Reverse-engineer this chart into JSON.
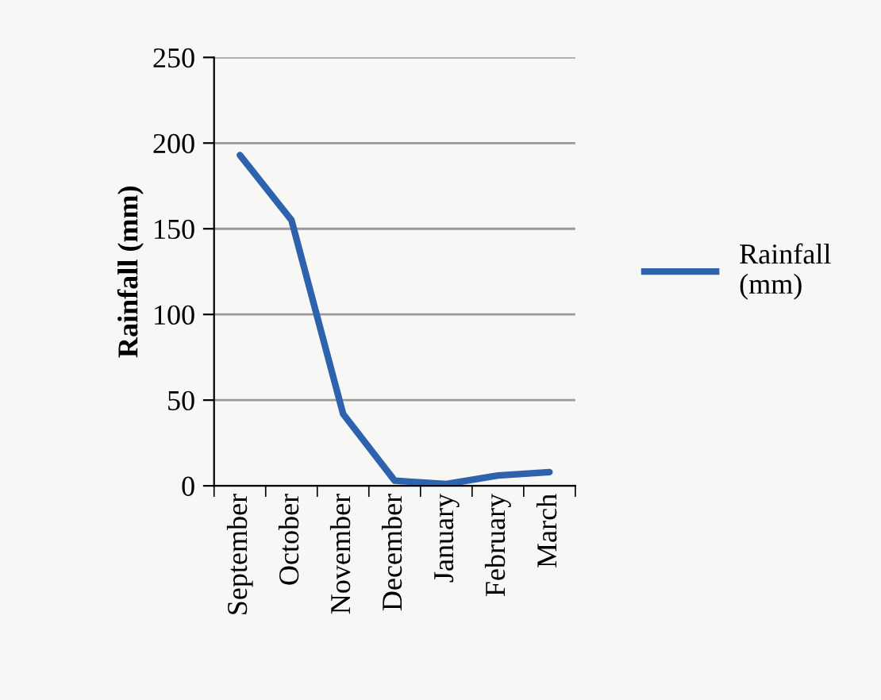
{
  "chart_data": {
    "type": "line",
    "ylabel": "Rainfall (mm)",
    "categories": [
      "September",
      "October",
      "November",
      "December",
      "January",
      "February",
      "March"
    ],
    "series": [
      {
        "name": "Rainfall\n(mm)",
        "color": "#2f62ad",
        "values": [
          193,
          155,
          42,
          3,
          1,
          6,
          8
        ]
      }
    ],
    "ylim": [
      0,
      250
    ],
    "yticks": [
      0,
      50,
      100,
      150,
      200,
      250
    ],
    "grid": "y",
    "legend": "right",
    "marker": "none",
    "line_style": "solid"
  }
}
